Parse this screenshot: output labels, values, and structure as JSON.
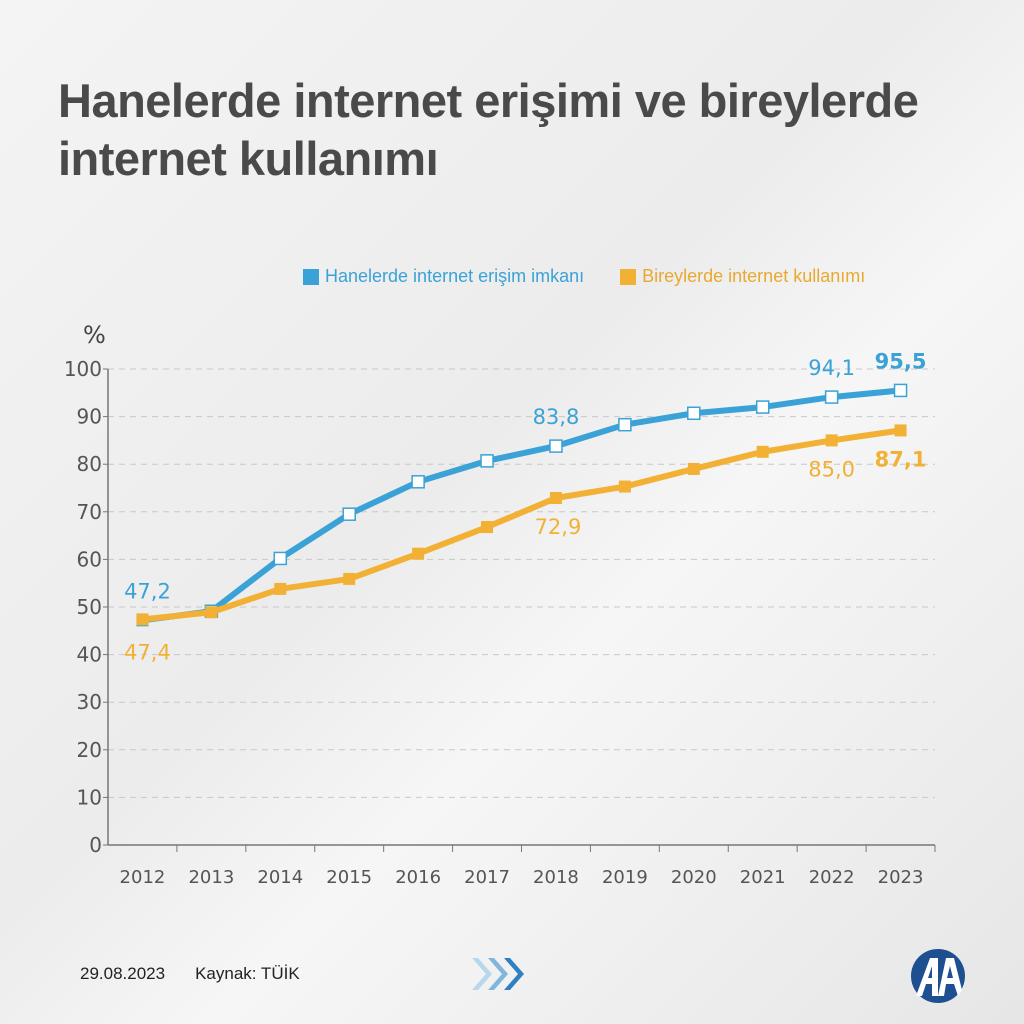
{
  "title": "Hanelerde internet erişimi ve bireylerde internet kullanımı",
  "footer": {
    "date": "29.08.2023",
    "source": "Kaynak: TÜİK"
  },
  "logo_text": "AA",
  "chart_data": {
    "type": "line",
    "title": "Hanelerde internet erişimi ve bireylerde internet kullanımı",
    "ylabel": "%",
    "xlabel": "",
    "ylim": [
      0,
      100
    ],
    "yticks": [
      0,
      10,
      20,
      30,
      40,
      50,
      60,
      70,
      80,
      90,
      100
    ],
    "grid": "horizontal dashed",
    "legend": "top",
    "categories": [
      "2012",
      "2013",
      "2014",
      "2015",
      "2016",
      "2017",
      "2018",
      "2019",
      "2020",
      "2021",
      "2022",
      "2023"
    ],
    "series": [
      {
        "name": "Hanelerde internet erişim imkanı",
        "color": "#3aa2d6",
        "values": [
          47.2,
          49.1,
          60.2,
          69.5,
          76.3,
          80.7,
          83.8,
          88.3,
          90.7,
          92.0,
          94.1,
          95.5
        ],
        "labels": {
          "0": "47,2",
          "6": "83,8",
          "10": "94,1",
          "11": "95,5"
        }
      },
      {
        "name": "Bireylerde internet kullanımı",
        "color": "#f2b134",
        "values": [
          47.4,
          48.9,
          53.8,
          55.9,
          61.2,
          66.8,
          72.9,
          75.3,
          79.0,
          82.6,
          85.0,
          87.1
        ],
        "labels": {
          "0": "47,4",
          "6": "72,9",
          "10": "85,0",
          "11": "87,1"
        }
      }
    ]
  }
}
